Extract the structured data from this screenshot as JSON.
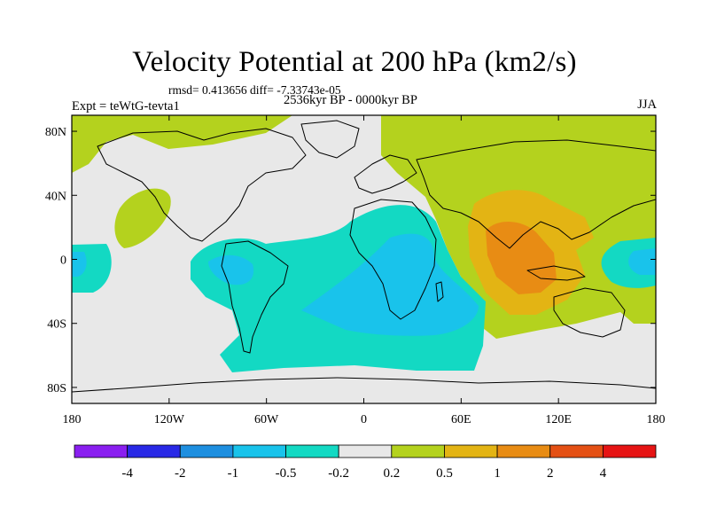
{
  "title": "Velocity Potential at 200 hPa (km2/s)",
  "stats": "rmsd= 0.413656 diff= -7.33743e-05",
  "experiment": "Expt = teWtG-tevta1",
  "period": "2536kyr BP - 0000kyr BP",
  "season": "JJA",
  "axes": {
    "lon_ticks": [
      "180",
      "120W",
      "60W",
      "0",
      "60E",
      "120E",
      "180"
    ],
    "lat_ticks": [
      "80N",
      "40N",
      "0",
      "40S",
      "80S"
    ]
  },
  "colorbar": {
    "labels": [
      "-4",
      "-2",
      "-1",
      "-0.5",
      "-0.2",
      "0.2",
      "0.5",
      "1",
      "2",
      "4"
    ],
    "colors": [
      "#8a1ff0",
      "#2929e6",
      "#1e8fe0",
      "#19c3eb",
      "#13d9c3",
      "#e8e8e8",
      "#b4d21e",
      "#e3b414",
      "#e88c14",
      "#e45014",
      "#e61414"
    ]
  },
  "field_colors": {
    "background": "#e8e8e8",
    "positive_weak": "#b4d21e",
    "positive_mid": "#e3b414",
    "positive_strong": "#e88c14",
    "negative_weak": "#13d9c3",
    "negative_mid": "#19c3eb",
    "negative_strong": "#1e8fe0"
  }
}
